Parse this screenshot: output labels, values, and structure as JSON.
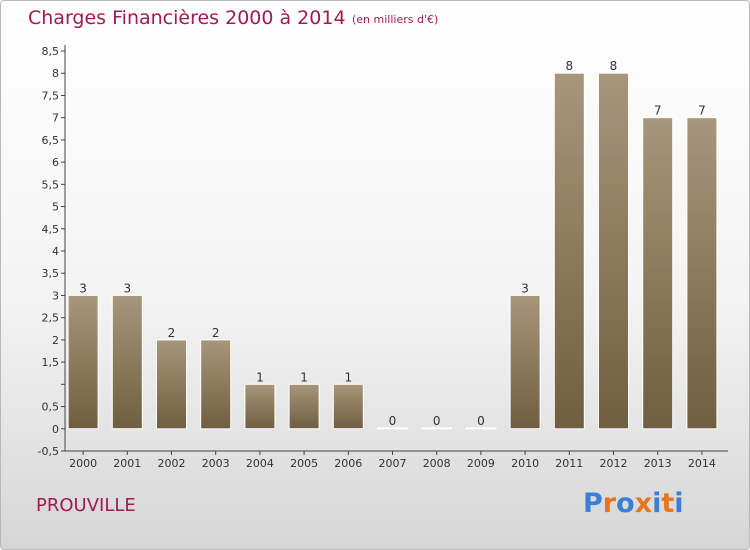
{
  "chart_data": {
    "type": "bar",
    "title": "Charges Financières 2000 à 2014",
    "subtitle": "(en milliers d'€)",
    "categories": [
      "2000",
      "2001",
      "2002",
      "2003",
      "2004",
      "2005",
      "2006",
      "2007",
      "2008",
      "2009",
      "2010",
      "2011",
      "2012",
      "2013",
      "2014"
    ],
    "values": [
      3,
      3,
      2,
      2,
      1,
      1,
      1,
      0,
      0,
      0,
      3,
      8,
      8,
      7,
      7
    ],
    "data_labels": [
      "3",
      "3",
      "2",
      "2",
      "1",
      "1",
      "1",
      "0",
      "0",
      "0",
      "3",
      "8",
      "8",
      "7",
      "7"
    ],
    "ylim": [
      -0.5,
      8.5
    ],
    "yticks": [
      -0.5,
      0,
      0.5,
      1,
      1.5,
      2,
      2.5,
      3,
      3.5,
      4,
      4.5,
      5,
      5.5,
      6,
      6.5,
      7,
      7.5,
      8,
      8.5
    ],
    "ytick_labels": [
      "-0,5",
      "0",
      "0,5",
      "",
      "1,5",
      "2",
      "2,5",
      "3",
      "3,5",
      "4",
      "4,5",
      "5",
      "5,5",
      "6",
      "6,5",
      "7",
      "7,5",
      "8",
      "8,5"
    ],
    "grid": false,
    "bar_color": "#8c7a5a"
  },
  "footer": {
    "commune": "PROUVILLE",
    "brand_letters": [
      "P",
      "r",
      "o",
      "x",
      "i",
      "t",
      "i"
    ],
    "brand_colors": [
      "#3a7fd5",
      "#e8741e",
      "#3a7fd5",
      "#e8741e",
      "#3a7fd5",
      "#e8741e",
      "#3a7fd5"
    ]
  }
}
